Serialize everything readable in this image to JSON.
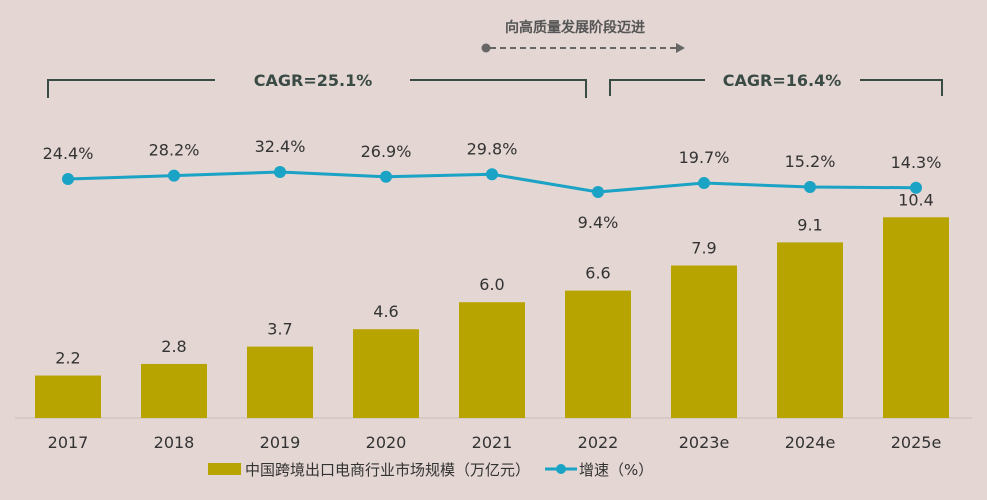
{
  "chart_data": {
    "type": "bar+line",
    "categories": [
      "2017",
      "2018",
      "2019",
      "2020",
      "2021",
      "2022",
      "2023e",
      "2024e",
      "2025e"
    ],
    "series": [
      {
        "name": "中国跨境出口电商行业市场规模（万亿元）",
        "type": "bar",
        "values": [
          2.2,
          2.8,
          3.7,
          4.6,
          6.0,
          6.6,
          7.9,
          9.1,
          10.4
        ],
        "labels": [
          "2.2",
          "2.8",
          "3.7",
          "4.6",
          "6.0",
          "6.6",
          "7.9",
          "9.1",
          "10.4"
        ],
        "color": "#b8a400"
      },
      {
        "name": "增速（%）",
        "type": "line",
        "values": [
          24.4,
          28.2,
          32.4,
          26.9,
          29.8,
          9.4,
          19.7,
          15.2,
          14.3
        ],
        "labels": [
          "24.4%",
          "28.2%",
          "32.4%",
          "26.9%",
          "29.8%",
          "9.4%",
          "19.7%",
          "15.2%",
          "14.3%"
        ],
        "color": "#1aa3c4"
      }
    ],
    "annotations": {
      "stage": "向高质量发展阶段迈进",
      "cagr_left": "CAGR=25.1%",
      "cagr_right": "CAGR=16.4%"
    },
    "legend_placement": "bottom",
    "grid": false
  }
}
